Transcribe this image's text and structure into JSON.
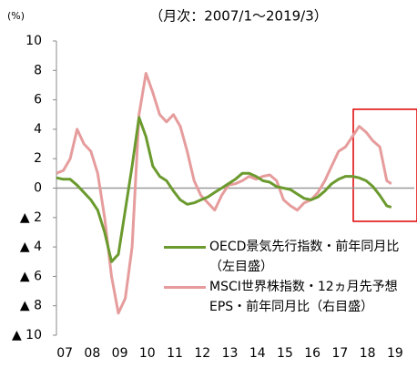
{
  "chart_data": {
    "type": "line",
    "subtitle": "（月次：2007/1～2019/3）",
    "y_label": "(%)",
    "x": [
      2007,
      2007.25,
      2007.5,
      2007.75,
      2008,
      2008.25,
      2008.5,
      2008.75,
      2009,
      2009.25,
      2009.5,
      2009.75,
      2010,
      2010.25,
      2010.5,
      2010.75,
      2011,
      2011.25,
      2011.5,
      2011.75,
      2012,
      2012.25,
      2012.5,
      2012.75,
      2013,
      2013.25,
      2013.5,
      2013.75,
      2014,
      2014.25,
      2014.5,
      2014.75,
      2015,
      2015.25,
      2015.5,
      2015.75,
      2016,
      2016.25,
      2016.5,
      2016.75,
      2017,
      2017.25,
      2017.5,
      2017.75,
      2018,
      2018.25,
      2018.5,
      2018.75,
      2019,
      2019.167
    ],
    "series": [
      {
        "name": "OECD景気先行指数・前年同月比（左目盛）",
        "color": "#6b9a2e",
        "values": [
          0.7,
          0.6,
          0.6,
          0.2,
          -0.3,
          -0.8,
          -1.5,
          -3.0,
          -5.0,
          -4.5,
          -1.5,
          1.5,
          4.8,
          3.5,
          1.5,
          0.8,
          0.5,
          -0.2,
          -0.8,
          -1.1,
          -1.0,
          -0.8,
          -0.6,
          -0.3,
          0,
          0.3,
          0.6,
          1.0,
          1.0,
          0.8,
          0.5,
          0.4,
          0.1,
          0,
          -0.1,
          -0.4,
          -0.7,
          -0.8,
          -0.6,
          -0.2,
          0.3,
          0.6,
          0.8,
          0.8,
          0.7,
          0.5,
          0.1,
          -0.5,
          -1.2,
          -1.3
        ]
      },
      {
        "name": "MSCI世界株指数・12ヵ月先予想EPS・前年同月比（右目盛）",
        "color": "#e69c9c",
        "values": [
          1.0,
          1.2,
          2.0,
          4.0,
          3.0,
          2.5,
          1.0,
          -2.0,
          -6.0,
          -8.5,
          -7.5,
          -4.0,
          5.0,
          7.8,
          6.5,
          5.0,
          4.5,
          5.0,
          4.2,
          2.5,
          0.5,
          -0.5,
          -1.0,
          -1.5,
          -0.5,
          0.2,
          0.3,
          0.5,
          0.8,
          0.6,
          0.8,
          0.9,
          0.5,
          -0.8,
          -1.2,
          -1.5,
          -1.0,
          -0.8,
          -0.3,
          0.5,
          1.5,
          2.5,
          2.8,
          3.5,
          4.2,
          3.8,
          3.2,
          2.8,
          0.5,
          0.3
        ]
      }
    ],
    "xlim": [
      2007,
      2020
    ],
    "xticks": [
      {
        "value": 2007.5,
        "label": "07"
      },
      {
        "value": 2008.5,
        "label": "08"
      },
      {
        "value": 2009.5,
        "label": "09"
      },
      {
        "value": 2010.5,
        "label": "10"
      },
      {
        "value": 2011.5,
        "label": "11"
      },
      {
        "value": 2012.5,
        "label": "12"
      },
      {
        "value": 2013.5,
        "label": "13"
      },
      {
        "value": 2014.5,
        "label": "14"
      },
      {
        "value": 2015.5,
        "label": "15"
      },
      {
        "value": 2016.5,
        "label": "16"
      },
      {
        "value": 2017.5,
        "label": "17"
      },
      {
        "value": 2018.5,
        "label": "18"
      },
      {
        "value": 2019.5,
        "label": "19"
      }
    ],
    "ylim": [
      -10,
      10
    ],
    "yticks": [
      10,
      8,
      6,
      4,
      2,
      0,
      {
        "value": -2,
        "label": "▲ 2"
      },
      {
        "value": -4,
        "label": "▲ 4"
      },
      {
        "value": -6,
        "label": "▲ 6"
      },
      {
        "value": -8,
        "label": "▲ 8"
      },
      {
        "value": -10,
        "label": "▲ 10"
      }
    ]
  }
}
